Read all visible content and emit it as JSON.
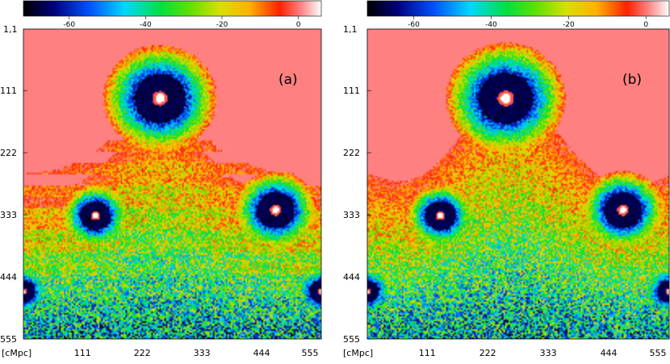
{
  "colormap": {
    "stops": [
      [
        0.0,
        "#000000"
      ],
      [
        0.1,
        "#00007a"
      ],
      [
        0.22,
        "#0050ff"
      ],
      [
        0.34,
        "#00d8ff"
      ],
      [
        0.46,
        "#00e040"
      ],
      [
        0.56,
        "#60e000"
      ],
      [
        0.66,
        "#d8e000"
      ],
      [
        0.76,
        "#ffb000"
      ],
      [
        0.86,
        "#ff2000"
      ],
      [
        0.93,
        "#ff8080"
      ],
      [
        1.0,
        "#ffffff"
      ]
    ],
    "background": "#ff8080"
  },
  "chart_data": [
    {
      "type": "heatmap",
      "panel_label": "(a)",
      "colorbar": {
        "ticks": [
          "-60",
          "-40",
          "-20",
          "0"
        ],
        "tick_values": [
          -60,
          -40,
          -20,
          0
        ],
        "range": [
          -72,
          6
        ]
      },
      "x_unit": "[cMpc]",
      "y_unit": "1,1",
      "x_ticks": [
        "111",
        "222",
        "333",
        "444",
        "555"
      ],
      "y_ticks": [
        "111",
        "222",
        "333",
        "444",
        "555"
      ],
      "axis_range": [
        1,
        555
      ],
      "ionized_front_y": 290,
      "sources": [
        {
          "x": 255,
          "y": 125,
          "radius": 48
        },
        {
          "x": 135,
          "y": 335,
          "radius": 28
        },
        {
          "x": 470,
          "y": 325,
          "radius": 35
        },
        {
          "x": 0,
          "y": 470,
          "radius": 22
        },
        {
          "x": 555,
          "y": 470,
          "radius": 22
        }
      ]
    },
    {
      "type": "heatmap",
      "panel_label": "(b)",
      "colorbar": {
        "ticks": [
          "-60",
          "-40",
          "-20",
          "0"
        ],
        "tick_values": [
          -60,
          -40,
          -20,
          0
        ],
        "range": [
          -72,
          6
        ]
      },
      "x_unit": "[cMpc]",
      "y_unit": "1,1",
      "x_ticks": [
        "111",
        "222",
        "333",
        "444",
        "555"
      ],
      "y_ticks": [
        "111",
        "222",
        "333",
        "444",
        "555"
      ],
      "axis_range": [
        1,
        555
      ],
      "ionized_front_y": 270,
      "sources": [
        {
          "x": 255,
          "y": 125,
          "radius": 50
        },
        {
          "x": 135,
          "y": 335,
          "radius": 28
        },
        {
          "x": 470,
          "y": 325,
          "radius": 35
        },
        {
          "x": 0,
          "y": 470,
          "radius": 22
        },
        {
          "x": 555,
          "y": 470,
          "radius": 22
        }
      ]
    }
  ]
}
